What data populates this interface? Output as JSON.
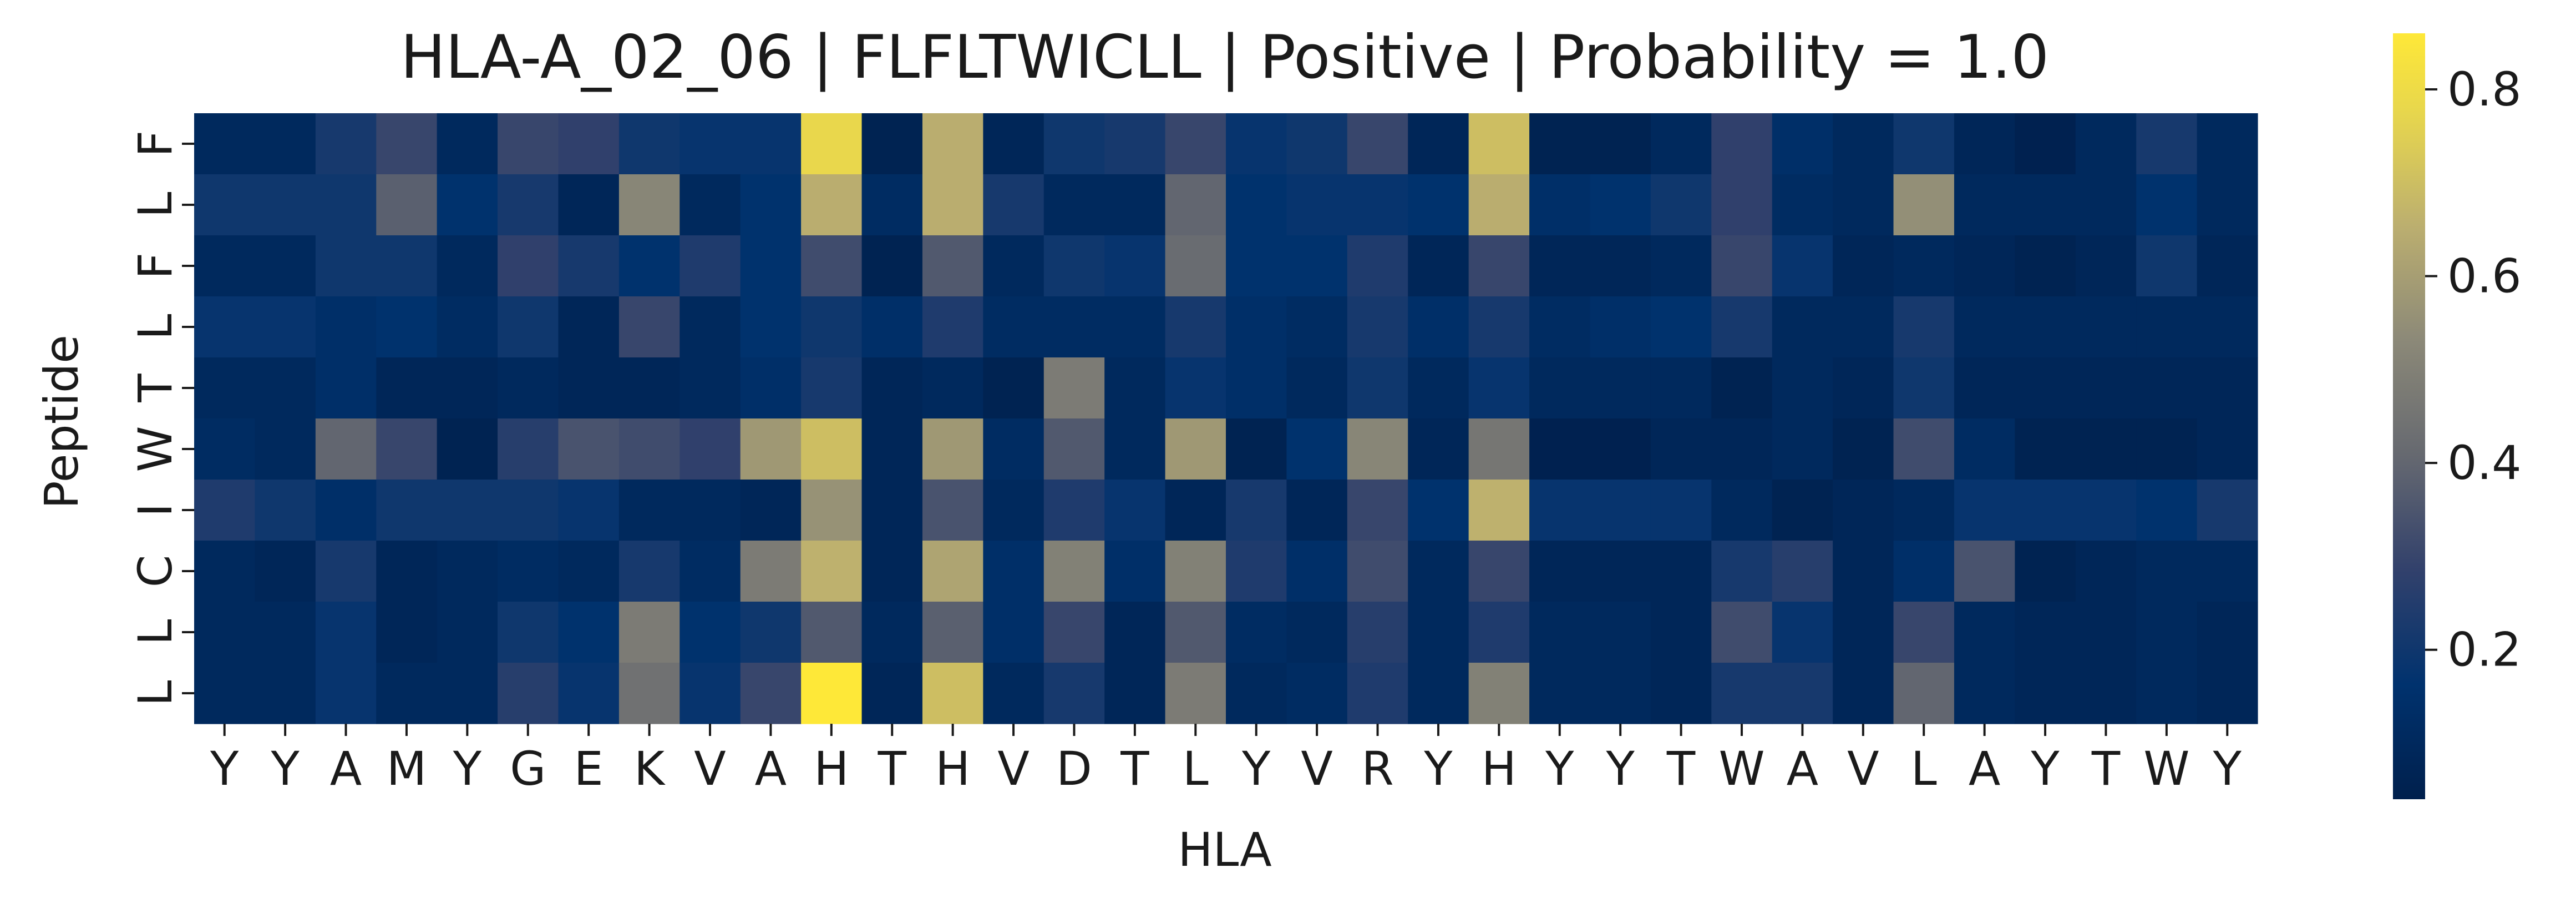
{
  "chart_data": {
    "type": "heatmap",
    "title": "HLA-A_02_06 | FLFLTWICLL | Positive | Probability = 1.0",
    "xlabel": "HLA",
    "ylabel": "Peptide",
    "x_categories": [
      "Y",
      "Y",
      "A",
      "M",
      "Y",
      "G",
      "E",
      "K",
      "V",
      "A",
      "H",
      "T",
      "H",
      "V",
      "D",
      "T",
      "L",
      "Y",
      "V",
      "R",
      "Y",
      "H",
      "Y",
      "Y",
      "T",
      "W",
      "A",
      "V",
      "L",
      "A",
      "Y",
      "T",
      "W",
      "Y"
    ],
    "y_categories": [
      "F",
      "L",
      "F",
      "L",
      "T",
      "W",
      "I",
      "C",
      "L",
      "L"
    ],
    "values": [
      [
        0.1,
        0.1,
        0.22,
        0.3,
        0.1,
        0.3,
        0.28,
        0.2,
        0.18,
        0.18,
        0.78,
        0.06,
        0.65,
        0.08,
        0.2,
        0.22,
        0.3,
        0.18,
        0.2,
        0.3,
        0.08,
        0.7,
        0.06,
        0.06,
        0.1,
        0.28,
        0.14,
        0.1,
        0.2,
        0.08,
        0.05,
        0.1,
        0.22,
        0.1
      ],
      [
        0.2,
        0.2,
        0.2,
        0.38,
        0.16,
        0.22,
        0.08,
        0.52,
        0.1,
        0.16,
        0.65,
        0.12,
        0.65,
        0.22,
        0.1,
        0.1,
        0.4,
        0.16,
        0.18,
        0.18,
        0.16,
        0.65,
        0.14,
        0.16,
        0.2,
        0.28,
        0.12,
        0.1,
        0.55,
        0.1,
        0.1,
        0.1,
        0.16,
        0.1
      ],
      [
        0.1,
        0.1,
        0.2,
        0.2,
        0.1,
        0.28,
        0.22,
        0.16,
        0.24,
        0.16,
        0.32,
        0.06,
        0.36,
        0.1,
        0.2,
        0.18,
        0.42,
        0.16,
        0.16,
        0.24,
        0.08,
        0.3,
        0.08,
        0.08,
        0.1,
        0.3,
        0.18,
        0.08,
        0.1,
        0.08,
        0.06,
        0.08,
        0.2,
        0.08
      ],
      [
        0.18,
        0.18,
        0.14,
        0.16,
        0.12,
        0.2,
        0.08,
        0.3,
        0.1,
        0.16,
        0.2,
        0.14,
        0.24,
        0.12,
        0.12,
        0.12,
        0.22,
        0.14,
        0.12,
        0.22,
        0.14,
        0.22,
        0.12,
        0.14,
        0.16,
        0.22,
        0.1,
        0.1,
        0.22,
        0.1,
        0.1,
        0.1,
        0.1,
        0.1
      ],
      [
        0.1,
        0.1,
        0.14,
        0.08,
        0.08,
        0.1,
        0.08,
        0.08,
        0.1,
        0.14,
        0.22,
        0.08,
        0.1,
        0.06,
        0.48,
        0.1,
        0.18,
        0.14,
        0.1,
        0.2,
        0.1,
        0.18,
        0.1,
        0.1,
        0.1,
        0.06,
        0.1,
        0.08,
        0.2,
        0.08,
        0.08,
        0.08,
        0.08,
        0.08
      ],
      [
        0.12,
        0.1,
        0.4,
        0.3,
        0.06,
        0.26,
        0.34,
        0.32,
        0.28,
        0.58,
        0.7,
        0.08,
        0.58,
        0.12,
        0.36,
        0.1,
        0.58,
        0.06,
        0.16,
        0.52,
        0.08,
        0.46,
        0.05,
        0.05,
        0.08,
        0.08,
        0.1,
        0.06,
        0.32,
        0.12,
        0.06,
        0.06,
        0.06,
        0.08
      ],
      [
        0.24,
        0.2,
        0.14,
        0.2,
        0.2,
        0.2,
        0.18,
        0.1,
        0.1,
        0.08,
        0.56,
        0.08,
        0.34,
        0.1,
        0.24,
        0.18,
        0.08,
        0.22,
        0.08,
        0.3,
        0.16,
        0.66,
        0.18,
        0.18,
        0.18,
        0.1,
        0.06,
        0.08,
        0.1,
        0.18,
        0.18,
        0.18,
        0.16,
        0.22
      ],
      [
        0.1,
        0.08,
        0.22,
        0.08,
        0.1,
        0.12,
        0.1,
        0.22,
        0.12,
        0.48,
        0.66,
        0.08,
        0.62,
        0.14,
        0.5,
        0.14,
        0.5,
        0.24,
        0.14,
        0.32,
        0.1,
        0.3,
        0.08,
        0.08,
        0.08,
        0.22,
        0.26,
        0.08,
        0.14,
        0.34,
        0.06,
        0.08,
        0.1,
        0.1
      ],
      [
        0.1,
        0.1,
        0.18,
        0.08,
        0.1,
        0.2,
        0.16,
        0.48,
        0.16,
        0.2,
        0.36,
        0.1,
        0.38,
        0.14,
        0.3,
        0.08,
        0.36,
        0.12,
        0.1,
        0.26,
        0.1,
        0.24,
        0.1,
        0.1,
        0.08,
        0.32,
        0.18,
        0.08,
        0.3,
        0.1,
        0.08,
        0.08,
        0.1,
        0.08
      ],
      [
        0.1,
        0.1,
        0.18,
        0.1,
        0.1,
        0.26,
        0.18,
        0.44,
        0.18,
        0.3,
        0.86,
        0.08,
        0.7,
        0.1,
        0.22,
        0.08,
        0.48,
        0.1,
        0.12,
        0.24,
        0.1,
        0.5,
        0.1,
        0.1,
        0.08,
        0.22,
        0.22,
        0.08,
        0.4,
        0.1,
        0.08,
        0.08,
        0.1,
        0.08
      ]
    ],
    "colormap": "cividis",
    "vmin": 0.04,
    "vmax": 0.86,
    "colorbar_ticks": [
      "0.2",
      "0.4",
      "0.6",
      "0.8"
    ],
    "colorbar_tick_values": [
      0.2,
      0.4,
      0.6,
      0.8
    ]
  }
}
